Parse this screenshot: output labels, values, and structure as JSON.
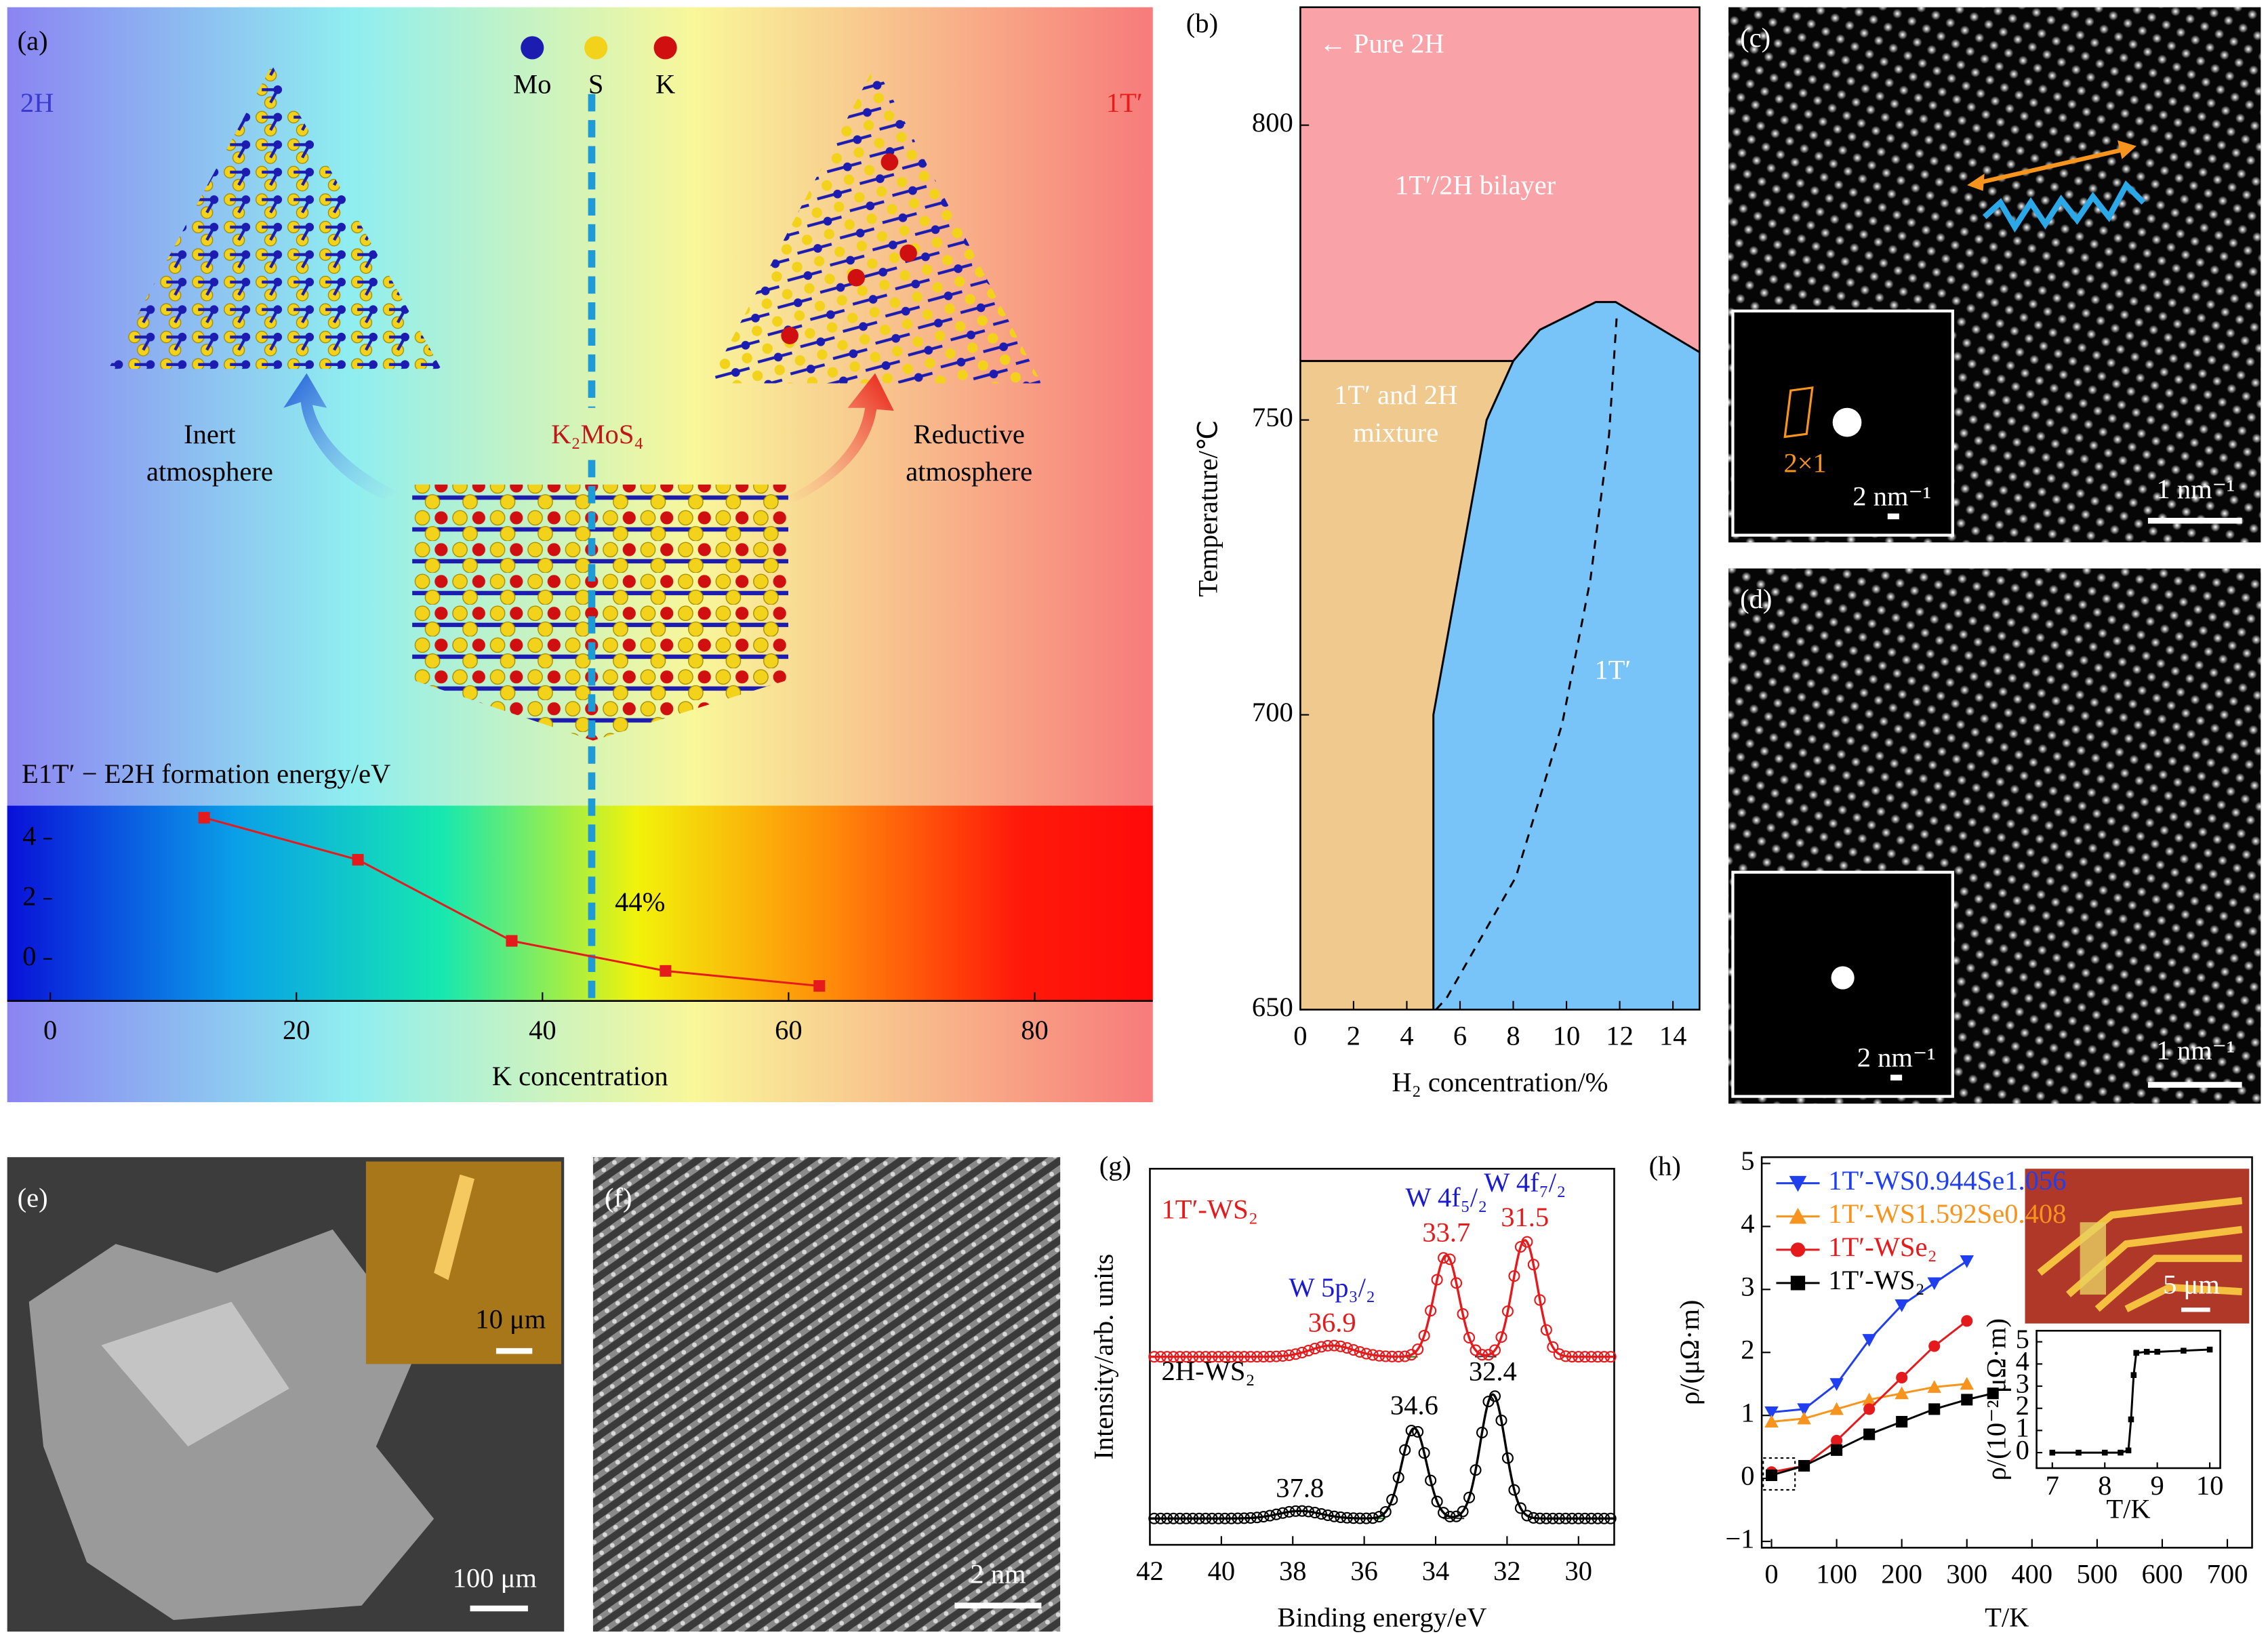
{
  "panels": {
    "labels": [
      "(a)",
      "(b)",
      "(c)",
      "(d)",
      "(e)",
      "(f)",
      "(g)",
      "(h)"
    ],
    "a": {
      "phase_left": "2H",
      "phase_right": "1T′",
      "atoms": [
        "Mo",
        "S",
        "K"
      ],
      "atom_colors": [
        "#1c1cb0",
        "#f2d21a",
        "#d01010"
      ],
      "left_arrow": [
        "Inert",
        "atmosphere"
      ],
      "right_arrow": [
        "Reductive",
        "atmosphere"
      ],
      "precursor": "K₂MoS₄"
    },
    "c": {
      "scale": "1 nm⁻¹",
      "inset_scale": "2 nm⁻¹",
      "inset_cell": "2×1"
    },
    "d": {
      "scale": "1 nm⁻¹",
      "inset_scale": "2 nm⁻¹"
    },
    "e": {
      "scale": "100 μm",
      "inset_scale": "10 μm"
    },
    "f": {
      "scale": "2 nm"
    },
    "h": {
      "inset_scale": "5 μm"
    }
  },
  "chart_data": [
    {
      "type": "line",
      "title": "E1T′ − E2H formation energy/eV",
      "x_label": "K concentration",
      "x": [
        12.5,
        25,
        37.5,
        50,
        62.5
      ],
      "series": [
        {
          "color": "#e41a1c",
          "marker": "square",
          "values": [
            4.7,
            3.3,
            0.6,
            -0.4,
            -0.9
          ]
        }
      ],
      "xlim": [
        -3.5,
        89.6
      ],
      "ylim": [
        -1.4,
        5.1
      ],
      "xticks": [
        0,
        20,
        40,
        60,
        80
      ],
      "yticks": [
        0,
        2,
        4
      ],
      "threshold": {
        "value": 44,
        "label": "44%"
      }
    },
    {
      "type": "phase-diagram",
      "x_label": "H₂ concentration/%",
      "y_label": "Temperature/℃",
      "xlim": [
        0,
        15
      ],
      "ylim": [
        650,
        820
      ],
      "xticks": [
        0,
        2,
        4,
        6,
        8,
        10,
        12,
        14
      ],
      "yticks": [
        650,
        700,
        750,
        800
      ],
      "regions": [
        {
          "label": [
            "1T′/2H bilayer"
          ],
          "color": "#f9a3a8"
        },
        {
          "label": [
            "1T′ and 2H",
            "mixture"
          ],
          "color": "#f0c98e"
        },
        {
          "label": [
            "1T′"
          ],
          "color": "#78c4f8"
        }
      ],
      "bilayer_boundary": {
        "x": [
          0,
          8
        ],
        "y": [
          760,
          760
        ]
      },
      "phase_boundary": {
        "x": [
          5,
          5,
          7,
          8,
          9,
          11.1,
          11.85,
          15
        ],
        "y": [
          650,
          700,
          750,
          760,
          765.3,
          770,
          770,
          761.5
        ]
      },
      "transition_line": {
        "x": [
          5.1,
          5.5,
          8.1,
          9.84,
          10.9,
          11.6,
          11.9
        ],
        "y": [
          650,
          652,
          672.5,
          698.5,
          723,
          747.5,
          768.4
        ]
      },
      "annotation": "← Pure 2H"
    },
    {
      "type": "xps",
      "x_label": "Binding energy/eV",
      "y_label": "Intensity/arb. units",
      "xlim": [
        42,
        29
      ],
      "ylim": [
        0,
        10
      ],
      "xticks": [
        42,
        40,
        38,
        36,
        34,
        32,
        30
      ],
      "peak_label_color": "#1a1ad0",
      "series": [
        {
          "name": "1T′-WS₂",
          "color": "#e41a1c",
          "baseline": 5.0,
          "peaks": [
            {
              "label": "W 5p₃/₂",
              "position": 36.9,
              "height": 0.3,
              "width": 0.6
            },
            {
              "label": "W 4f₅/₂",
              "position": 33.7,
              "height": 2.7,
              "width": 0.35
            },
            {
              "label": "W 4f₇/₂",
              "position": 31.5,
              "height": 3.1,
              "width": 0.35
            }
          ]
        },
        {
          "name": "2H-WS₂",
          "color": "#000000",
          "baseline": 0.7,
          "peaks": [
            {
              "position": 37.8,
              "height": 0.2,
              "width": 0.6
            },
            {
              "position": 34.6,
              "height": 2.4,
              "width": 0.35
            },
            {
              "position": 32.4,
              "height": 3.3,
              "width": 0.35
            }
          ]
        }
      ]
    },
    {
      "type": "line",
      "x_label": "T/K",
      "y_label": "ρ/(μΩ·m)",
      "legend": "upper left",
      "xlim": [
        -15,
        738
      ],
      "ylim": [
        -1.1,
        5.1
      ],
      "xticks": [
        0,
        100,
        200,
        300,
        400,
        500,
        600,
        700
      ],
      "yticks": [
        {
          "value": -1,
          "label": "−1"
        },
        0,
        1,
        2,
        3,
        4,
        5
      ],
      "x": [
        0,
        50,
        100,
        150,
        200,
        250,
        300,
        340
      ],
      "series": [
        {
          "name": "1T′-WS0.944Se1.056",
          "color": "#1f3ff0",
          "marker": "triangle-down",
          "values": [
            1.05,
            1.1,
            1.5,
            2.2,
            2.75,
            3.1,
            3.45,
            null
          ]
        },
        {
          "name": "1T′-WS1.592Se0.408",
          "color": "#f7941d",
          "marker": "triangle-up",
          "values": [
            0.9,
            0.95,
            1.1,
            1.25,
            1.35,
            1.45,
            1.5,
            null
          ]
        },
        {
          "name": "1T′-WSe₂",
          "color": "#e41a1c",
          "marker": "circle",
          "values": [
            0.1,
            0.2,
            0.6,
            1.1,
            1.6,
            2.1,
            2.5,
            null
          ]
        },
        {
          "name": "1T′-WS₂",
          "color": "#000000",
          "marker": "square",
          "values": [
            0.05,
            0.2,
            0.45,
            0.7,
            0.9,
            1.1,
            1.25,
            1.35
          ]
        }
      ]
    },
    {
      "type": "line",
      "x_label": "T/K",
      "y_label": "ρ/(10⁻² μΩ·m)",
      "xlim": [
        6.7,
        10.2
      ],
      "ylim": [
        -0.7,
        5.5
      ],
      "xticks": [
        7,
        8,
        9,
        10
      ],
      "yticks": [
        0,
        1,
        2,
        3,
        4,
        5
      ],
      "x": [
        7,
        7.5,
        8,
        8.3,
        8.45,
        8.5,
        8.55,
        8.6,
        8.8,
        9,
        9.5,
        10
      ],
      "series": [
        {
          "color": "#000000",
          "marker": "square",
          "values": [
            0,
            0,
            0,
            0,
            0.1,
            1.5,
            3.5,
            4.5,
            4.55,
            4.55,
            4.6,
            4.65
          ]
        }
      ]
    }
  ]
}
